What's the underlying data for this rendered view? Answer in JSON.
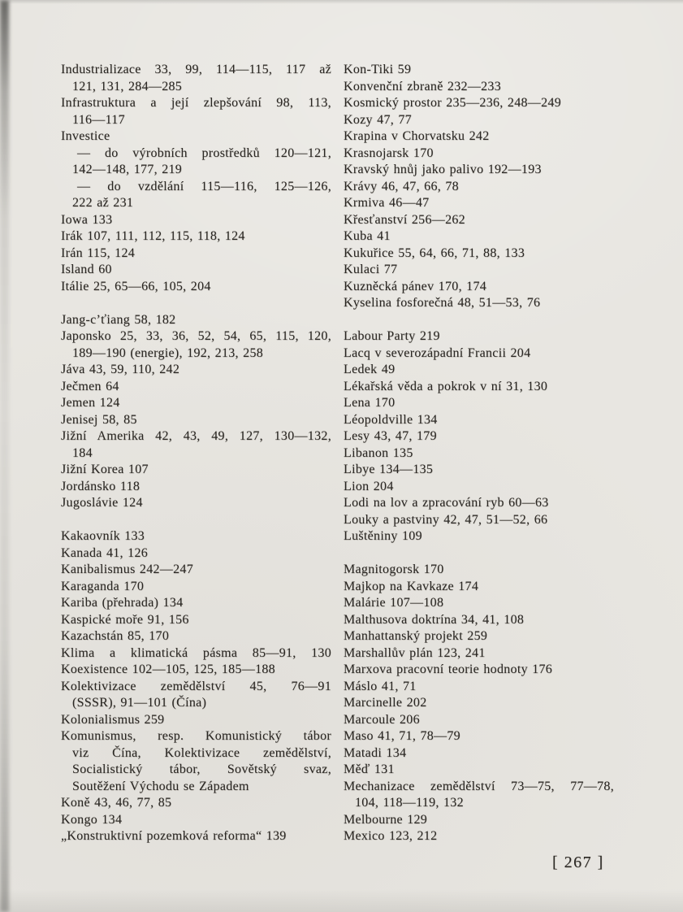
{
  "page": {
    "number": "267",
    "number_display": "[ 267 ]"
  },
  "colors": {
    "paper": "#e8e6e1",
    "ink": "#2a2723"
  },
  "index": {
    "columns": {
      "left": {
        "lines": [
          {
            "t": "Industrializace 33, 99, 114—115, 117 až",
            "i": 0,
            "j": true
          },
          {
            "t": "121, 131, 284—285",
            "i": 1
          },
          {
            "t": "Infrastruktura a její zlepšování 98, 113,",
            "i": 0,
            "j": true
          },
          {
            "t": "116—117",
            "i": 1
          },
          {
            "t": "Investice",
            "i": 0
          },
          {
            "t": "— do výrobních prostředků 120—121,",
            "i": 2,
            "j": true
          },
          {
            "t": "142—148, 177, 219",
            "i": 1
          },
          {
            "t": "— do vzdělání 115—116, 125—126,",
            "i": 2,
            "j": true
          },
          {
            "t": "222 až 231",
            "i": 1
          },
          {
            "t": "Iowa 133",
            "i": 0
          },
          {
            "t": "Irák 107, 111, 112, 115, 118, 124",
            "i": 0
          },
          {
            "t": "Irán 115, 124",
            "i": 0
          },
          {
            "t": "Island 60",
            "i": 0
          },
          {
            "t": "Itálie 25, 65—66, 105, 204",
            "i": 0
          },
          {
            "t": ""
          },
          {
            "t": "Jang-c’ťiang 58, 182",
            "i": 0
          },
          {
            "t": "Japonsko 25, 33, 36, 52, 54, 65, 115, 120,",
            "i": 0,
            "j": true
          },
          {
            "t": "189—190 (energie), 192, 213, 258",
            "i": 1
          },
          {
            "t": "Jáva 43, 59, 110, 242",
            "i": 0
          },
          {
            "t": "Ječmen 64",
            "i": 0
          },
          {
            "t": "Jemen 124",
            "i": 0
          },
          {
            "t": "Jenisej 58, 85",
            "i": 0
          },
          {
            "t": "Jižní Amerika 42, 43, 49, 127, 130—132,",
            "i": 0,
            "j": true
          },
          {
            "t": "184",
            "i": 1
          },
          {
            "t": "Jižní Korea 107",
            "i": 0
          },
          {
            "t": "Jordánsko 118",
            "i": 0
          },
          {
            "t": "Jugoslávie 124",
            "i": 0
          },
          {
            "t": ""
          },
          {
            "t": "Kakaovník 133",
            "i": 0
          },
          {
            "t": "Kanada 41, 126",
            "i": 0
          },
          {
            "t": "Kanibalismus 242—247",
            "i": 0
          },
          {
            "t": "Karaganda 170",
            "i": 0
          },
          {
            "t": "Kariba (přehrada) 134",
            "i": 0
          },
          {
            "t": "Kaspické moře 91, 156",
            "i": 0
          },
          {
            "t": "Kazachstán 85, 170",
            "i": 0
          },
          {
            "t": "Klima a klimatická pásma 85—91, 130",
            "i": 0,
            "j": true
          },
          {
            "t": "Koexistence 102—105, 125, 185—188",
            "i": 0
          },
          {
            "t": "Kolektivizace zemědělství 45, 76—91",
            "i": 0,
            "j": true
          },
          {
            "t": "(SSSR), 91—101 (Čína)",
            "i": 1
          },
          {
            "t": "Kolonialismus 259",
            "i": 0
          },
          {
            "t": "Komunismus, resp. Komunistický tábor",
            "i": 0,
            "j": true
          },
          {
            "t": "viz Čína, Kolektivizace zemědělství,",
            "i": 1,
            "j": true
          },
          {
            "t": "Socialistický tábor, Sovětský svaz,",
            "i": 1,
            "j": true
          },
          {
            "t": "Soutěžení Východu se Západem",
            "i": 1
          },
          {
            "t": "Koně 43, 46, 77, 85",
            "i": 0
          },
          {
            "t": "Kongo 134",
            "i": 0
          },
          {
            "t": "„Konstruktivní pozemková reforma“ 139",
            "i": 0
          }
        ]
      },
      "right": {
        "lines": [
          {
            "t": "Kon-Tiki 59",
            "i": 0
          },
          {
            "t": "Konvenční zbraně 232—233",
            "i": 0
          },
          {
            "t": "Kosmický prostor 235—236, 248—249",
            "i": 0
          },
          {
            "t": "Kozy 47, 77",
            "i": 0
          },
          {
            "t": "Krapina v Chorvatsku 242",
            "i": 0
          },
          {
            "t": "Krasnojarsk 170",
            "i": 0
          },
          {
            "t": "Kravský hnůj jako palivo 192—193",
            "i": 0
          },
          {
            "t": "Krávy 46, 47, 66, 78",
            "i": 0
          },
          {
            "t": "Krmiva 46—47",
            "i": 0
          },
          {
            "t": "Křesťanství 256—262",
            "i": 0
          },
          {
            "t": "Kuba 41",
            "i": 0
          },
          {
            "t": "Kukuřice 55, 64, 66, 71, 88, 133",
            "i": 0
          },
          {
            "t": "Kulaci 77",
            "i": 0
          },
          {
            "t": "Kuzněcká pánev 170, 174",
            "i": 0
          },
          {
            "t": "Kyselina fosforečná 48, 51—53, 76",
            "i": 0
          },
          {
            "t": ""
          },
          {
            "t": "Labour Party 219",
            "i": 0
          },
          {
            "t": "Lacq v severozápadní Francii 204",
            "i": 0
          },
          {
            "t": "Ledek 49",
            "i": 0
          },
          {
            "t": "Lékařská věda a pokrok v ní 31, 130",
            "i": 0
          },
          {
            "t": "Lena 170",
            "i": 0
          },
          {
            "t": "Léopoldville 134",
            "i": 0
          },
          {
            "t": "Lesy 43, 47, 179",
            "i": 0
          },
          {
            "t": "Libanon 135",
            "i": 0
          },
          {
            "t": "Libye 134—135",
            "i": 0
          },
          {
            "t": "Lion 204",
            "i": 0
          },
          {
            "t": "Lodi na lov a zpracování ryb 60—63",
            "i": 0
          },
          {
            "t": "Louky a pastviny 42, 47, 51—52, 66",
            "i": 0
          },
          {
            "t": "Luštěniny 109",
            "i": 0
          },
          {
            "t": ""
          },
          {
            "t": "Magnitogorsk 170",
            "i": 0
          },
          {
            "t": "Majkop na Kavkaze 174",
            "i": 0
          },
          {
            "t": "Malárie 107—108",
            "i": 0
          },
          {
            "t": "Malthusova doktrína 34, 41, 108",
            "i": 0
          },
          {
            "t": "Manhattanský projekt 259",
            "i": 0
          },
          {
            "t": "Marshallův plán 123, 241",
            "i": 0
          },
          {
            "t": "Marxova pracovní teorie hodnoty 176",
            "i": 0
          },
          {
            "t": "Máslo 41, 71",
            "i": 0
          },
          {
            "t": "Marcinelle 202",
            "i": 0
          },
          {
            "t": "Marcoule 206",
            "i": 0
          },
          {
            "t": "Maso 41, 71, 78—79",
            "i": 0
          },
          {
            "t": "Matadi 134",
            "i": 0
          },
          {
            "t": "Měď 131",
            "i": 0
          },
          {
            "t": "Mechanizace zemědělství 73—75, 77—78,",
            "i": 0,
            "j": true
          },
          {
            "t": "104, 118—119, 132",
            "i": 1
          },
          {
            "t": "Melbourne 129",
            "i": 0
          },
          {
            "t": "Mexico 123, 212",
            "i": 0
          }
        ]
      }
    }
  }
}
